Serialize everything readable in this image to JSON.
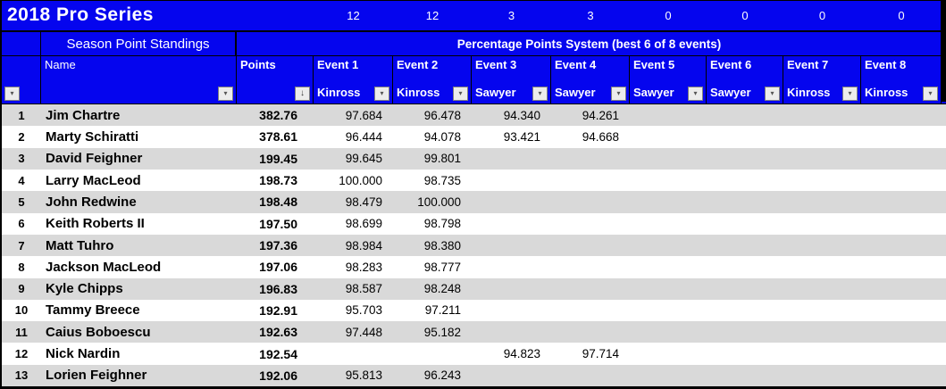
{
  "title": "2018 Pro Series",
  "header": {
    "season_label": "Season Point Standings",
    "system_label": "Percentage Points System (best 6 of 8 events)",
    "name_label": "Name",
    "points_label": "Points"
  },
  "colors": {
    "header_blue": "#0505ee",
    "stripe_gray": "#d9d9d9",
    "row_white": "#ffffff",
    "header_text": "#ffffff",
    "body_text": "#000000"
  },
  "icons": {
    "filter_arrow": "▾",
    "sort_filter": "↓"
  },
  "events": [
    {
      "label": "Event 1",
      "venue": "Kinross",
      "count": "12"
    },
    {
      "label": "Event 2",
      "venue": "Kinross",
      "count": "12"
    },
    {
      "label": "Event 3",
      "venue": "Sawyer",
      "count": "3"
    },
    {
      "label": "Event 4",
      "venue": "Sawyer",
      "count": "3"
    },
    {
      "label": "Event 5",
      "venue": "Sawyer",
      "count": "0"
    },
    {
      "label": "Event 6",
      "venue": "Sawyer",
      "count": "0"
    },
    {
      "label": "Event 7",
      "venue": "Kinross",
      "count": "0"
    },
    {
      "label": "Event 8",
      "venue": "Kinross",
      "count": "0"
    }
  ],
  "standings": {
    "rows": [
      {
        "rank": "1",
        "name": "Jim Chartre",
        "points": "382.76",
        "scores": [
          "97.684",
          "96.478",
          "94.340",
          "94.261",
          "",
          "",
          "",
          ""
        ]
      },
      {
        "rank": "2",
        "name": "Marty Schiratti",
        "points": "378.61",
        "scores": [
          "96.444",
          "94.078",
          "93.421",
          "94.668",
          "",
          "",
          "",
          ""
        ]
      },
      {
        "rank": "3",
        "name": "David Feighner",
        "points": "199.45",
        "scores": [
          "99.645",
          "99.801",
          "",
          "",
          "",
          "",
          "",
          ""
        ]
      },
      {
        "rank": "4",
        "name": "Larry MacLeod",
        "points": "198.73",
        "scores": [
          "100.000",
          "98.735",
          "",
          "",
          "",
          "",
          "",
          ""
        ]
      },
      {
        "rank": "5",
        "name": "John Redwine",
        "points": "198.48",
        "scores": [
          "98.479",
          "100.000",
          "",
          "",
          "",
          "",
          "",
          ""
        ]
      },
      {
        "rank": "6",
        "name": "Keith Roberts II",
        "points": "197.50",
        "scores": [
          "98.699",
          "98.798",
          "",
          "",
          "",
          "",
          "",
          ""
        ]
      },
      {
        "rank": "7",
        "name": "Matt Tuhro",
        "points": "197.36",
        "scores": [
          "98.984",
          "98.380",
          "",
          "",
          "",
          "",
          "",
          ""
        ]
      },
      {
        "rank": "8",
        "name": "Jackson MacLeod",
        "points": "197.06",
        "scores": [
          "98.283",
          "98.777",
          "",
          "",
          "",
          "",
          "",
          ""
        ]
      },
      {
        "rank": "9",
        "name": "Kyle Chipps",
        "points": "196.83",
        "scores": [
          "98.587",
          "98.248",
          "",
          "",
          "",
          "",
          "",
          ""
        ]
      },
      {
        "rank": "10",
        "name": "Tammy Breece",
        "points": "192.91",
        "scores": [
          "95.703",
          "97.211",
          "",
          "",
          "",
          "",
          "",
          ""
        ]
      },
      {
        "rank": "11",
        "name": "Caius Boboescu",
        "points": "192.63",
        "scores": [
          "97.448",
          "95.182",
          "",
          "",
          "",
          "",
          "",
          ""
        ]
      },
      {
        "rank": "12",
        "name": "Nick Nardin",
        "points": "192.54",
        "scores": [
          "",
          "",
          "94.823",
          "97.714",
          "",
          "",
          "",
          ""
        ]
      },
      {
        "rank": "13",
        "name": "Lorien Feighner",
        "points": "192.06",
        "scores": [
          "95.813",
          "96.243",
          "",
          "",
          "",
          "",
          "",
          ""
        ]
      }
    ]
  }
}
